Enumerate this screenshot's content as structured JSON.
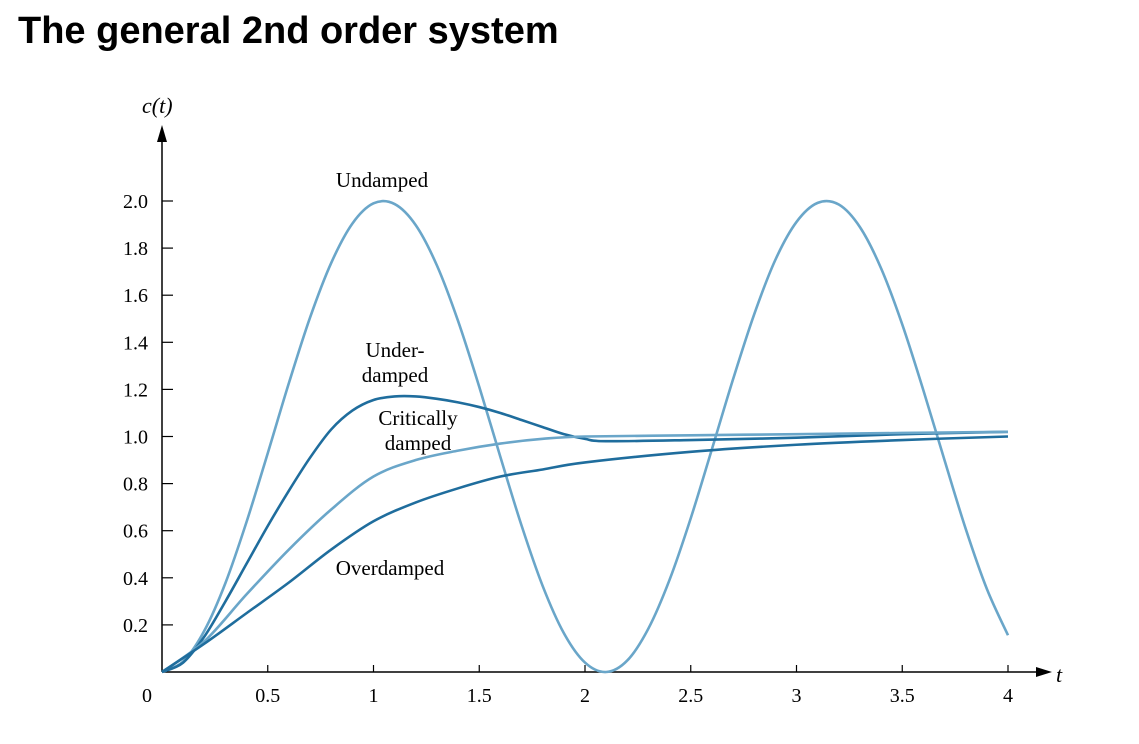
{
  "title": "The general 2nd order system",
  "chart_data": {
    "type": "line",
    "title": "",
    "xlabel": "t",
    "ylabel": "c(t)",
    "xlim": [
      0,
      4
    ],
    "ylim": [
      0,
      2.0
    ],
    "grid": false,
    "legend": "none",
    "x_ticks": [
      "0",
      "0.5",
      "1",
      "1.5",
      "2",
      "2.5",
      "3",
      "3.5",
      "4"
    ],
    "x_tick_values": [
      0,
      0.5,
      1,
      1.5,
      2,
      2.5,
      3,
      3.5,
      4
    ],
    "y_ticks": [
      "0.2",
      "0.4",
      "0.6",
      "0.8",
      "1.0",
      "1.2",
      "1.4",
      "1.6",
      "1.8",
      "2.0"
    ],
    "y_tick_values": [
      0.2,
      0.4,
      0.6,
      0.8,
      1.0,
      1.2,
      1.4,
      1.6,
      1.8,
      2.0
    ],
    "series": [
      {
        "name": "Undamped",
        "color": "#6aa6c9",
        "x": [
          0,
          0.1,
          0.2,
          0.3,
          0.4,
          0.5,
          0.6,
          0.7,
          0.8,
          0.9,
          1.0,
          1.1,
          1.2,
          1.3,
          1.4,
          1.5,
          1.6,
          1.7,
          1.8,
          1.9,
          2.0,
          2.1,
          2.2,
          2.3,
          2.4,
          2.5,
          2.6,
          2.7,
          2.8,
          2.9,
          3.0,
          3.1,
          3.2,
          3.3,
          3.4,
          3.5,
          3.6,
          3.7,
          3.8,
          3.9,
          4.0
        ],
        "y": [
          0,
          0.045,
          0.175,
          0.378,
          0.638,
          0.929,
          1.227,
          1.505,
          1.737,
          1.904,
          1.99,
          1.987,
          1.897,
          1.726,
          1.49,
          1.211,
          0.913,
          0.622,
          0.365,
          0.165,
          0.04,
          0,
          0.049,
          0.185,
          0.392,
          0.653,
          0.946,
          1.243,
          1.519,
          1.75,
          1.911,
          1.992,
          1.985,
          1.889,
          1.714,
          1.476,
          1.196,
          0.899,
          0.608,
          0.353,
          0.156
        ]
      },
      {
        "name": "Under-damped",
        "color": "#1f6d9d",
        "x": [
          0,
          0.1,
          0.2,
          0.3,
          0.4,
          0.5,
          0.6,
          0.7,
          0.8,
          0.9,
          1.0,
          1.1,
          1.2,
          1.3,
          1.4,
          1.5,
          1.6,
          1.7,
          1.8,
          1.9,
          2.0,
          2.1,
          2.5,
          3.0,
          3.5,
          4.0
        ],
        "y": [
          0,
          0.04,
          0.15,
          0.3,
          0.46,
          0.62,
          0.77,
          0.91,
          1.03,
          1.11,
          1.155,
          1.17,
          1.17,
          1.16,
          1.145,
          1.125,
          1.1,
          1.07,
          1.04,
          1.01,
          0.99,
          0.98,
          0.985,
          0.995,
          1.01,
          1.02
        ]
      },
      {
        "name": "Critically damped",
        "color": "#6aa6c9",
        "x": [
          0,
          0.2,
          0.4,
          0.6,
          0.8,
          1.0,
          1.2,
          1.4,
          1.6,
          1.8,
          2.0,
          2.5,
          3.0,
          3.5,
          4.0
        ],
        "y": [
          0,
          0.13,
          0.33,
          0.52,
          0.69,
          0.83,
          0.9,
          0.94,
          0.97,
          0.99,
          1.0,
          1.005,
          1.01,
          1.015,
          1.02
        ]
      },
      {
        "name": "Overdamped",
        "color": "#1f6d9d",
        "x": [
          0,
          0.2,
          0.4,
          0.6,
          0.8,
          1.0,
          1.2,
          1.4,
          1.6,
          1.8,
          2.0,
          2.5,
          3.0,
          3.5,
          4.0
        ],
        "y": [
          0,
          0.12,
          0.25,
          0.38,
          0.52,
          0.64,
          0.72,
          0.78,
          0.83,
          0.86,
          0.89,
          0.935,
          0.965,
          0.985,
          1.0
        ]
      }
    ],
    "annotations": [
      "Undamped",
      "Under-",
      "damped",
      "Critically",
      "damped",
      "Overdamped"
    ]
  }
}
